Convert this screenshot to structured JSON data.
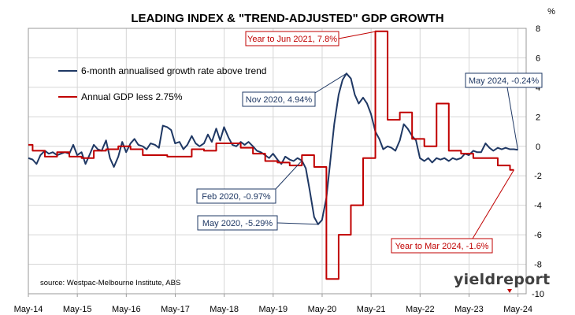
{
  "chart_data": {
    "type": "line",
    "title": "LEADING INDEX & \"TREND-ADJUSTED\" GDP GROWTH",
    "y_unit": "%",
    "ylim": [
      -10,
      8
    ],
    "yticks": [
      -10,
      -8,
      -6,
      -4,
      -2,
      0,
      2,
      4,
      6,
      8
    ],
    "x_tick_labels": [
      "May-14",
      "May-15",
      "May-16",
      "May-17",
      "May-18",
      "May-19",
      "May-20",
      "May-21",
      "May-22",
      "May-23",
      "May-24"
    ],
    "x_tick_dates": [
      2014.333,
      2015.333,
      2016.333,
      2017.333,
      2018.333,
      2019.333,
      2020.333,
      2021.333,
      2022.333,
      2023.333,
      2024.333
    ],
    "xlim": [
      2014.333,
      2024.5
    ],
    "grid": true,
    "legend_position": "top-left",
    "series": [
      {
        "name": "6-month annualised growth rate above trend",
        "color": "#1f3864",
        "points": [
          [
            2014.33,
            -0.8
          ],
          [
            2014.42,
            -0.9
          ],
          [
            2014.5,
            -1.2
          ],
          [
            2014.58,
            -0.6
          ],
          [
            2014.67,
            -0.3
          ],
          [
            2014.75,
            -0.5
          ],
          [
            2014.83,
            -0.4
          ],
          [
            2014.92,
            -0.6
          ],
          [
            2015.0,
            -0.5
          ],
          [
            2015.08,
            -0.4
          ],
          [
            2015.17,
            -0.5
          ],
          [
            2015.25,
            0.1
          ],
          [
            2015.33,
            -0.6
          ],
          [
            2015.42,
            -0.4
          ],
          [
            2015.5,
            -1.2
          ],
          [
            2015.58,
            -0.6
          ],
          [
            2015.67,
            0.1
          ],
          [
            2015.75,
            -0.2
          ],
          [
            2015.83,
            -0.3
          ],
          [
            2015.92,
            0.4
          ],
          [
            2016.0,
            -0.8
          ],
          [
            2016.08,
            -1.4
          ],
          [
            2016.17,
            -0.7
          ],
          [
            2016.25,
            0.3
          ],
          [
            2016.33,
            -0.4
          ],
          [
            2016.42,
            0.2
          ],
          [
            2016.5,
            0.5
          ],
          [
            2016.58,
            0.1
          ],
          [
            2016.67,
            0.0
          ],
          [
            2016.75,
            -0.2
          ],
          [
            2016.83,
            0.2
          ],
          [
            2016.92,
            0.1
          ],
          [
            2017.0,
            -0.1
          ],
          [
            2017.08,
            1.4
          ],
          [
            2017.17,
            1.3
          ],
          [
            2017.25,
            1.1
          ],
          [
            2017.33,
            0.2
          ],
          [
            2017.42,
            0.3
          ],
          [
            2017.5,
            -0.2
          ],
          [
            2017.58,
            0.1
          ],
          [
            2017.67,
            0.7
          ],
          [
            2017.75,
            0.2
          ],
          [
            2017.83,
            0.0
          ],
          [
            2017.92,
            0.2
          ],
          [
            2018.0,
            0.8
          ],
          [
            2018.08,
            0.3
          ],
          [
            2018.17,
            1.2
          ],
          [
            2018.25,
            0.4
          ],
          [
            2018.33,
            1.3
          ],
          [
            2018.42,
            0.6
          ],
          [
            2018.5,
            0.1
          ],
          [
            2018.58,
            0.0
          ],
          [
            2018.67,
            0.3
          ],
          [
            2018.75,
            0.1
          ],
          [
            2018.83,
            0.3
          ],
          [
            2018.92,
            0.0
          ],
          [
            2019.0,
            -0.3
          ],
          [
            2019.08,
            -0.4
          ],
          [
            2019.17,
            -0.6
          ],
          [
            2019.25,
            -0.8
          ],
          [
            2019.33,
            -0.5
          ],
          [
            2019.42,
            -0.9
          ],
          [
            2019.5,
            -1.2
          ],
          [
            2019.58,
            -0.7
          ],
          [
            2019.67,
            -0.9
          ],
          [
            2019.75,
            -1.0
          ],
          [
            2019.83,
            -0.8
          ],
          [
            2019.92,
            -0.97
          ],
          [
            2020.0,
            -1.5
          ],
          [
            2020.08,
            -3.0
          ],
          [
            2020.17,
            -4.8
          ],
          [
            2020.25,
            -5.29
          ],
          [
            2020.33,
            -5.0
          ],
          [
            2020.42,
            -3.5
          ],
          [
            2020.5,
            -1.0
          ],
          [
            2020.58,
            1.5
          ],
          [
            2020.67,
            3.5
          ],
          [
            2020.75,
            4.5
          ],
          [
            2020.83,
            4.94
          ],
          [
            2020.92,
            4.6
          ],
          [
            2021.0,
            3.5
          ],
          [
            2021.08,
            2.9
          ],
          [
            2021.17,
            3.3
          ],
          [
            2021.25,
            2.9
          ],
          [
            2021.33,
            2.2
          ],
          [
            2021.42,
            1.0
          ],
          [
            2021.5,
            0.5
          ],
          [
            2021.58,
            -0.2
          ],
          [
            2021.67,
            0.0
          ],
          [
            2021.75,
            -0.1
          ],
          [
            2021.83,
            -0.3
          ],
          [
            2021.92,
            0.4
          ],
          [
            2022.0,
            1.5
          ],
          [
            2022.08,
            1.2
          ],
          [
            2022.17,
            0.7
          ],
          [
            2022.25,
            0.4
          ],
          [
            2022.33,
            -0.8
          ],
          [
            2022.42,
            -1.0
          ],
          [
            2022.5,
            -0.8
          ],
          [
            2022.58,
            -1.1
          ],
          [
            2022.67,
            -0.8
          ],
          [
            2022.75,
            -0.9
          ],
          [
            2022.83,
            -0.8
          ],
          [
            2022.92,
            -1.0
          ],
          [
            2023.0,
            -0.8
          ],
          [
            2023.08,
            -0.9
          ],
          [
            2023.17,
            -0.8
          ],
          [
            2023.25,
            -0.5
          ],
          [
            2023.33,
            -0.6
          ],
          [
            2023.42,
            -0.3
          ],
          [
            2023.5,
            -0.4
          ],
          [
            2023.58,
            -0.4
          ],
          [
            2023.67,
            0.2
          ],
          [
            2023.75,
            -0.1
          ],
          [
            2023.83,
            -0.3
          ],
          [
            2023.92,
            -0.1
          ],
          [
            2024.0,
            -0.2
          ],
          [
            2024.08,
            -0.1
          ],
          [
            2024.17,
            -0.2
          ],
          [
            2024.25,
            -0.2
          ],
          [
            2024.33,
            -0.24
          ]
        ]
      },
      {
        "name": "Annual GDP less 2.75%",
        "color": "#c00000",
        "step": true,
        "points": [
          [
            2014.17,
            0.1
          ],
          [
            2014.42,
            -0.3
          ],
          [
            2014.67,
            -0.7
          ],
          [
            2014.92,
            -0.4
          ],
          [
            2015.17,
            -0.7
          ],
          [
            2015.42,
            -0.8
          ],
          [
            2015.67,
            -0.3
          ],
          [
            2015.92,
            -0.2
          ],
          [
            2016.17,
            0.0
          ],
          [
            2016.42,
            -0.2
          ],
          [
            2016.67,
            -0.6
          ],
          [
            2016.92,
            -0.6
          ],
          [
            2017.17,
            -0.7
          ],
          [
            2017.42,
            -0.7
          ],
          [
            2017.67,
            -0.2
          ],
          [
            2017.92,
            -0.3
          ],
          [
            2018.17,
            0.2
          ],
          [
            2018.42,
            0.2
          ],
          [
            2018.67,
            -0.1
          ],
          [
            2018.92,
            -0.5
          ],
          [
            2019.17,
            -1.0
          ],
          [
            2019.42,
            -1.1
          ],
          [
            2019.67,
            -1.3
          ],
          [
            2019.92,
            -0.6
          ],
          [
            2020.17,
            -1.4
          ],
          [
            2020.42,
            -9.0
          ],
          [
            2020.67,
            -6.0
          ],
          [
            2020.92,
            -4.0
          ],
          [
            2021.17,
            -0.8
          ],
          [
            2021.42,
            7.8
          ],
          [
            2021.67,
            1.8
          ],
          [
            2021.92,
            2.3
          ],
          [
            2022.17,
            0.5
          ],
          [
            2022.42,
            0.0
          ],
          [
            2022.67,
            2.9
          ],
          [
            2022.92,
            -0.3
          ],
          [
            2023.17,
            -0.5
          ],
          [
            2023.42,
            -0.8
          ],
          [
            2023.67,
            -0.8
          ],
          [
            2023.92,
            -1.3
          ],
          [
            2024.17,
            -1.6
          ],
          [
            2024.25,
            -1.6
          ]
        ]
      }
    ],
    "annotations": [
      {
        "text": "Year to Jun 2021, 7.8%",
        "color": "#c00000",
        "target": [
          2021.45,
          7.8
        ]
      },
      {
        "text": "Nov 2020, 4.94%",
        "color": "#1f3864",
        "target": [
          2020.83,
          4.94
        ]
      },
      {
        "text": "May 2024, -0.24%",
        "color": "#1f3864",
        "target": [
          2024.33,
          -0.24
        ]
      },
      {
        "text": "Feb 2020, -0.97%",
        "color": "#1f3864",
        "target": [
          2019.92,
          -0.97
        ]
      },
      {
        "text": "May 2020, -5.29%",
        "color": "#1f3864",
        "target": [
          2020.25,
          -5.29
        ]
      },
      {
        "text": "Year to Mar 2024, -1.6%",
        "color": "#c00000",
        "target": [
          2024.25,
          -1.6
        ]
      }
    ],
    "source": "source: Westpac-Melbourne Institute, ABS",
    "logo": "yieldreport"
  }
}
